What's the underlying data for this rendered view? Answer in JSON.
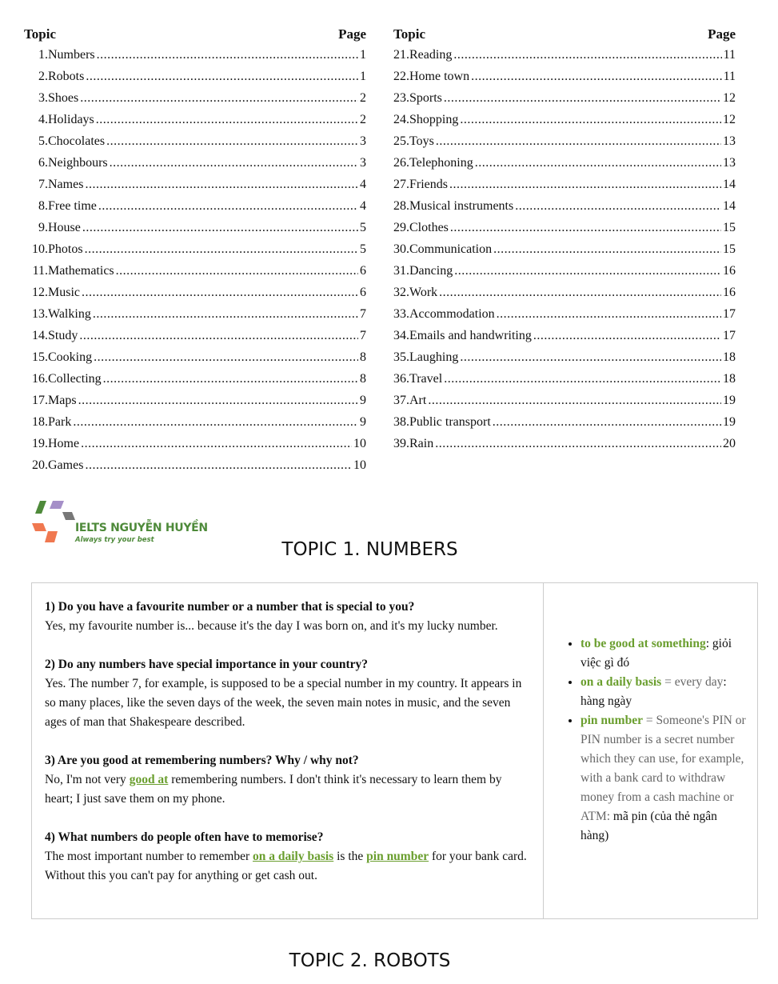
{
  "toc": {
    "topic_header": "Topic",
    "page_header": "Page",
    "left": [
      {
        "num": "1.",
        "title": "Numbers",
        "page": "1"
      },
      {
        "num": "2.",
        "title": "Robots",
        "page": "1"
      },
      {
        "num": "3.",
        "title": "Shoes",
        "page": "2"
      },
      {
        "num": "4.",
        "title": "Holidays",
        "page": "2"
      },
      {
        "num": "5.",
        "title": "Chocolates",
        "page": "3"
      },
      {
        "num": "6.",
        "title": "Neighbours",
        "page": "3"
      },
      {
        "num": "7.",
        "title": "Names",
        "page": "4"
      },
      {
        "num": "8.",
        "title": "Free time",
        "page": "4"
      },
      {
        "num": "9.",
        "title": "House",
        "page": "5"
      },
      {
        "num": "10.",
        "title": "Photos",
        "page": "5"
      },
      {
        "num": "11.",
        "title": "Mathematics",
        "page": "6"
      },
      {
        "num": "12.",
        "title": "Music",
        "page": "6"
      },
      {
        "num": "13.",
        "title": "Walking",
        "page": "7"
      },
      {
        "num": "14.",
        "title": "Study",
        "page": "7"
      },
      {
        "num": "15.",
        "title": "Cooking",
        "page": "8"
      },
      {
        "num": "16.",
        "title": "Collecting",
        "page": "8"
      },
      {
        "num": "17.",
        "title": "Maps",
        "page": "9"
      },
      {
        "num": "18.",
        "title": "Park",
        "page": "9"
      },
      {
        "num": "19.",
        "title": "Home",
        "page": "10"
      },
      {
        "num": "20.",
        "title": "Games",
        "page": "10"
      }
    ],
    "right": [
      {
        "num": "21.",
        "title": "Reading",
        "page": "11"
      },
      {
        "num": "22.",
        "title": "Home town",
        "page": "11"
      },
      {
        "num": "23.",
        "title": "Sports",
        "page": "12"
      },
      {
        "num": "24.",
        "title": "Shopping",
        "page": "12"
      },
      {
        "num": "25.",
        "title": "Toys",
        "page": "13"
      },
      {
        "num": "26.",
        "title": "Telephoning",
        "page": "13"
      },
      {
        "num": "27.",
        "title": "Friends",
        "page": "14"
      },
      {
        "num": "28.",
        "title": "Musical instruments",
        "page": "14"
      },
      {
        "num": "29.",
        "title": "Clothes",
        "page": "15"
      },
      {
        "num": "30.",
        "title": "Communication",
        "page": "15"
      },
      {
        "num": "31.",
        "title": "Dancing",
        "page": "16"
      },
      {
        "num": "32.",
        "title": "Work",
        "page": "16"
      },
      {
        "num": "33.",
        "title": "Accommodation",
        "page": "17"
      },
      {
        "num": "34.",
        "title": "Emails and handwriting",
        "page": "17"
      },
      {
        "num": "35.",
        "title": "Laughing",
        "page": "18"
      },
      {
        "num": "36.",
        "title": "Travel",
        "page": "18"
      },
      {
        "num": "37.",
        "title": "Art",
        "page": "19"
      },
      {
        "num": "38.",
        "title": "Public transport",
        "page": "19"
      },
      {
        "num": "39.",
        "title": "Rain",
        "page": "20"
      }
    ]
  },
  "logo": {
    "letters": [
      "L",
      "T",
      "S",
      "E",
      "I"
    ],
    "title": "IELTS NGUYỄN HUYỀN",
    "tagline": "Always try your best"
  },
  "topic1": {
    "title": "TOPIC 1. NUMBERS",
    "qa": [
      {
        "q": "1) Do you have a favourite number or a number that is special to you?",
        "a": [
          {
            "t": "Yes, my favourite number is... because it's the day I was born on, and it's my lucky number."
          }
        ]
      },
      {
        "q": "2) Do any numbers have special importance in your country?",
        "a": [
          {
            "t": "Yes. The number 7, for example, is supposed to be a special number in my country. It appears in so many places, like the seven days of the week, the seven main notes in music, and the seven ages of man that Shakespeare described."
          }
        ]
      },
      {
        "q": "3) Are you good at remembering numbers? Why / why not?",
        "a": [
          {
            "t": "No, I'm not very "
          },
          {
            "t": "good at",
            "hl": true
          },
          {
            "t": " remembering numbers. I don't think it's necessary to learn them by heart; I just save them on my phone."
          }
        ]
      },
      {
        "q": "4) What numbers do people often have to memorise?",
        "a": [
          {
            "t": "The most important number to remember "
          },
          {
            "t": "on a daily basis",
            "hl": true
          },
          {
            "t": " is the "
          },
          {
            "t": "pin number",
            "hl": true
          },
          {
            "t": " for your bank card. Without this you can't pay for anything or get cash out."
          }
        ]
      }
    ],
    "vocab": [
      {
        "term": "to be good at something",
        "sep": ":",
        "def": "",
        "vi": " giỏi việc gì đó"
      },
      {
        "term": "on a daily basis",
        "sep": "",
        "def": " = every day",
        "vi": ": hàng ngày"
      },
      {
        "term": "pin number",
        "sep": "",
        "def": " = Someone's PIN or PIN number is a secret number which they can use, for example, with a bank card to withdraw money from a cash machine or ATM:",
        "vi": " mã pin (của thẻ ngân hàng)"
      }
    ]
  },
  "topic2": {
    "title": "TOPIC 2. ROBOTS"
  },
  "colors": {
    "accent": "#6a9e2e",
    "logo_green": "#4e8a3a"
  }
}
